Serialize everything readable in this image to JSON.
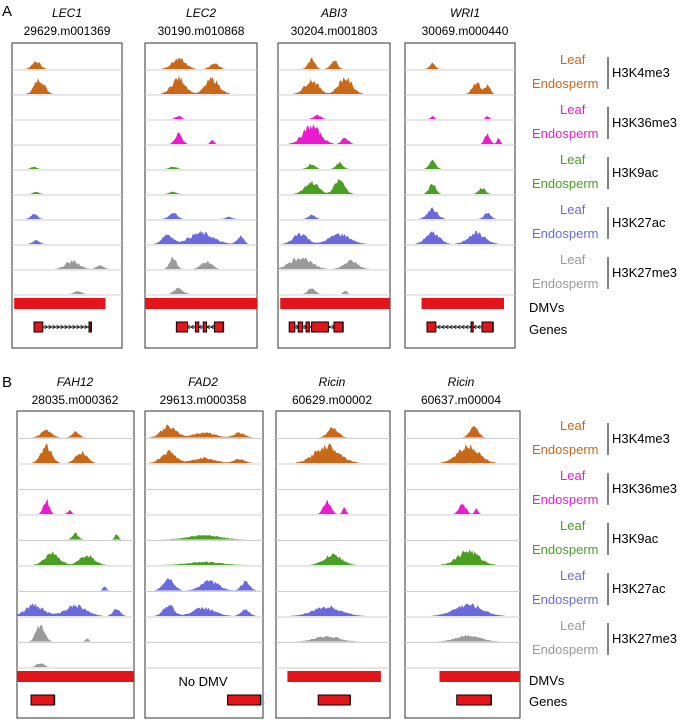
{
  "panels": [
    {
      "letter": "A",
      "genes": [
        {
          "name": "LEC1",
          "id": "29629.m001369"
        },
        {
          "name": "LEC2",
          "id": "30190.m010868"
        },
        {
          "name": "ABI3",
          "id": "30204.m001803"
        },
        {
          "name": "WRI1",
          "id": "30069.m000440"
        }
      ]
    },
    {
      "letter": "B",
      "genes": [
        {
          "name": "FAH12",
          "id": "28035.m000362"
        },
        {
          "name": "FAD2",
          "id": "29613.m000358"
        },
        {
          "name": "Ricin",
          "id": "60629.m00002"
        },
        {
          "name": "Ricin",
          "id": "60637.m00004"
        }
      ]
    }
  ],
  "tissues": {
    "leaf": "Leaf",
    "endosperm": "Endosperm"
  },
  "marks": [
    {
      "name": "H3K4me3",
      "color": "#c8691a"
    },
    {
      "name": "H3K36me3",
      "color": "#e81ccc"
    },
    {
      "name": "H3K9ac",
      "color": "#4a9e22"
    },
    {
      "name": "H3K27ac",
      "color": "#6a6add"
    },
    {
      "name": "H3K27me3",
      "color": "#9a9a9a"
    }
  ],
  "row_labels": {
    "dmvs": "DMVs",
    "genes": "Genes"
  },
  "no_dmv_label": "No DMV",
  "dmv_color": "#e4141b",
  "signal_data": {
    "A": [
      {
        "gene": "LEC1",
        "tracks": [
          [
            [
              0.22,
              0.12,
              0.4
            ]
          ],
          [
            [
              0.25,
              0.15,
              0.75
            ]
          ],
          [],
          [],
          [
            [
              0.2,
              0.08,
              0.12
            ]
          ],
          [
            [
              0.22,
              0.08,
              0.12
            ]
          ],
          [
            [
              0.2,
              0.1,
              0.25
            ]
          ],
          [
            [
              0.22,
              0.1,
              0.2
            ]
          ],
          [
            [
              0.55,
              0.2,
              0.4
            ],
            [
              0.8,
              0.1,
              0.2
            ]
          ],
          [
            [
              0.6,
              0.1,
              0.15
            ]
          ]
        ],
        "dmv": [
          0.02,
          0.85
        ],
        "gene_model": {
          "start": 0.2,
          "end": 0.72,
          "exons": [
            [
              0.2,
              0.28
            ],
            [
              0.7,
              0.72
            ]
          ],
          "arrow": "right"
        }
      },
      {
        "gene": "LEC2",
        "tracks": [
          [
            [
              0.3,
              0.2,
              0.5
            ],
            [
              0.62,
              0.12,
              0.3
            ]
          ],
          [
            [
              0.3,
              0.2,
              0.8
            ],
            [
              0.6,
              0.2,
              0.75
            ]
          ],
          [
            [
              0.3,
              0.08,
              0.15
            ]
          ],
          [
            [
              0.3,
              0.1,
              0.55
            ],
            [
              0.6,
              0.05,
              0.2
            ]
          ],
          [
            [
              0.25,
              0.1,
              0.12
            ]
          ],
          [
            [
              0.25,
              0.1,
              0.12
            ]
          ],
          [
            [
              0.25,
              0.12,
              0.3
            ],
            [
              0.75,
              0.1,
              0.1
            ]
          ],
          [
            [
              0.2,
              0.15,
              0.5
            ],
            [
              0.5,
              0.35,
              0.55
            ],
            [
              0.85,
              0.1,
              0.4
            ]
          ],
          [
            [
              0.25,
              0.1,
              0.6
            ],
            [
              0.55,
              0.15,
              0.4
            ]
          ],
          [
            [
              0.3,
              0.12,
              0.3
            ]
          ]
        ],
        "dmv": [
          0.0,
          1.0
        ],
        "gene_model": {
          "start": 0.28,
          "end": 0.7,
          "exons": [
            [
              0.28,
              0.38
            ],
            [
              0.45,
              0.48
            ],
            [
              0.52,
              0.55
            ],
            [
              0.62,
              0.7
            ]
          ],
          "arrow": "left"
        }
      },
      {
        "gene": "ABI3",
        "tracks": [
          [
            [
              0.3,
              0.1,
              0.5
            ],
            [
              0.5,
              0.1,
              0.45
            ]
          ],
          [
            [
              0.3,
              0.2,
              0.7
            ],
            [
              0.6,
              0.2,
              0.8
            ]
          ],
          [
            [
              0.35,
              0.1,
              0.2
            ]
          ],
          [
            [
              0.3,
              0.25,
              0.9
            ],
            [
              0.6,
              0.1,
              0.3
            ]
          ],
          [
            [
              0.3,
              0.1,
              0.25
            ],
            [
              0.55,
              0.1,
              0.3
            ]
          ],
          [
            [
              0.3,
              0.2,
              0.6
            ],
            [
              0.55,
              0.15,
              0.7
            ]
          ],
          [
            [
              0.3,
              0.1,
              0.2
            ]
          ],
          [
            [
              0.2,
              0.2,
              0.55
            ],
            [
              0.55,
              0.3,
              0.5
            ]
          ],
          [
            [
              0.2,
              0.3,
              0.6
            ],
            [
              0.65,
              0.2,
              0.4
            ]
          ],
          [
            [
              0.3,
              0.1,
              0.3
            ],
            [
              0.6,
              0.05,
              0.2
            ]
          ]
        ],
        "dmv": [
          0.02,
          1.0
        ],
        "gene_model": {
          "start": 0.1,
          "end": 0.58,
          "exons": [
            [
              0.1,
              0.15
            ],
            [
              0.18,
              0.22
            ],
            [
              0.25,
              0.28
            ],
            [
              0.3,
              0.45
            ],
            [
              0.5,
              0.58
            ]
          ],
          "arrow": "right"
        }
      },
      {
        "gene": "WRI1",
        "tracks": [
          [
            [
              0.25,
              0.08,
              0.3
            ]
          ],
          [
            [
              0.65,
              0.12,
              0.6
            ],
            [
              0.75,
              0.08,
              0.45
            ]
          ],
          [
            [
              0.25,
              0.05,
              0.15
            ],
            [
              0.75,
              0.05,
              0.15
            ]
          ],
          [
            [
              0.75,
              0.08,
              0.5
            ],
            [
              0.85,
              0.05,
              0.3
            ]
          ],
          [
            [
              0.25,
              0.1,
              0.4
            ]
          ],
          [
            [
              0.25,
              0.1,
              0.5
            ],
            [
              0.7,
              0.1,
              0.3
            ]
          ],
          [
            [
              0.25,
              0.15,
              0.5
            ],
            [
              0.75,
              0.1,
              0.3
            ]
          ],
          [
            [
              0.25,
              0.2,
              0.6
            ],
            [
              0.65,
              0.25,
              0.55
            ]
          ],
          [],
          []
        ],
        "dmv": [
          0.15,
          0.9
        ],
        "gene_model": {
          "start": 0.2,
          "end": 0.8,
          "exons": [
            [
              0.2,
              0.28
            ],
            [
              0.6,
              0.62
            ],
            [
              0.7,
              0.8
            ]
          ],
          "arrow": "left"
        }
      }
    ],
    "B": [
      {
        "gene": "FAH12",
        "tracks": [
          [
            [
              0.25,
              0.15,
              0.35
            ],
            [
              0.5,
              0.1,
              0.3
            ]
          ],
          [
            [
              0.25,
              0.15,
              0.8
            ],
            [
              0.55,
              0.15,
              0.55
            ]
          ],
          [],
          [
            [
              0.25,
              0.08,
              0.7
            ],
            [
              0.45,
              0.05,
              0.2
            ]
          ],
          [
            [
              0.5,
              0.08,
              0.3
            ],
            [
              0.85,
              0.05,
              0.25
            ]
          ],
          [
            [
              0.3,
              0.2,
              0.6
            ],
            [
              0.6,
              0.2,
              0.5
            ]
          ],
          [
            [
              0.75,
              0.05,
              0.2
            ]
          ],
          [
            [
              0.15,
              0.25,
              0.55
            ],
            [
              0.5,
              0.3,
              0.5
            ],
            [
              0.85,
              0.1,
              0.35
            ]
          ],
          [
            [
              0.2,
              0.12,
              0.8
            ],
            [
              0.6,
              0.05,
              0.15
            ]
          ],
          [
            [
              0.2,
              0.1,
              0.2
            ]
          ]
        ],
        "dmv": [
          0.0,
          1.0
        ],
        "gene_model": {
          "start": 0.12,
          "end": 0.32,
          "exons": [
            [
              0.12,
              0.32
            ]
          ],
          "arrow": "left"
        }
      },
      {
        "gene": "FAD2",
        "tracks": [
          [
            [
              0.2,
              0.2,
              0.55
            ],
            [
              0.5,
              0.3,
              0.25
            ],
            [
              0.8,
              0.15,
              0.25
            ]
          ],
          [
            [
              0.2,
              0.2,
              0.55
            ],
            [
              0.5,
              0.3,
              0.25
            ],
            [
              0.8,
              0.15,
              0.2
            ]
          ],
          [],
          [],
          [
            [
              0.5,
              0.45,
              0.2
            ]
          ],
          [
            [
              0.5,
              0.45,
              0.15
            ]
          ],
          [
            [
              0.2,
              0.15,
              0.6
            ],
            [
              0.55,
              0.25,
              0.45
            ],
            [
              0.85,
              0.12,
              0.4
            ]
          ],
          [
            [
              0.2,
              0.15,
              0.55
            ],
            [
              0.5,
              0.3,
              0.4
            ],
            [
              0.85,
              0.12,
              0.3
            ]
          ],
          [],
          []
        ],
        "dmv": null,
        "gene_model": {
          "start": 0.7,
          "end": 0.98,
          "exons": [
            [
              0.7,
              0.98
            ]
          ],
          "arrow": "left"
        }
      },
      {
        "gene": "Ricin",
        "tracks": [
          [
            [
              0.5,
              0.15,
              0.5
            ]
          ],
          [
            [
              0.45,
              0.35,
              0.85
            ]
          ],
          [],
          [
            [
              0.45,
              0.1,
              0.7
            ],
            [
              0.6,
              0.05,
              0.3
            ]
          ],
          [],
          [
            [
              0.5,
              0.25,
              0.5
            ]
          ],
          [],
          [
            [
              0.45,
              0.4,
              0.45
            ]
          ],
          [
            [
              0.45,
              0.35,
              0.25
            ]
          ],
          []
        ],
        "dmv": [
          0.1,
          0.92
        ],
        "gene_model": {
          "start": 0.37,
          "end": 0.65,
          "exons": [
            [
              0.37,
              0.65
            ]
          ],
          "arrow": "left"
        }
      },
      {
        "gene": "Ricin",
        "tracks": [
          [
            [
              0.6,
              0.12,
              0.55
            ]
          ],
          [
            [
              0.55,
              0.3,
              0.85
            ]
          ],
          [],
          [
            [
              0.5,
              0.1,
              0.5
            ],
            [
              0.62,
              0.05,
              0.25
            ]
          ],
          [],
          [
            [
              0.55,
              0.3,
              0.7
            ]
          ],
          [],
          [
            [
              0.55,
              0.4,
              0.55
            ]
          ],
          [
            [
              0.55,
              0.35,
              0.3
            ]
          ],
          []
        ],
        "dmv": [
          0.3,
          1.0
        ],
        "gene_model": {
          "start": 0.45,
          "end": 0.75,
          "exons": [
            [
              0.45,
              0.75
            ]
          ],
          "arrow": "left"
        }
      }
    ]
  }
}
